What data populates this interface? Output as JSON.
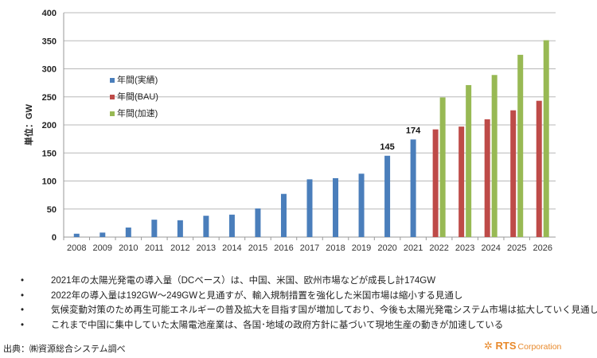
{
  "chart_data": {
    "type": "bar",
    "title": "",
    "ylabel": "単位：GW",
    "xlabel": "",
    "ylim": [
      0,
      400
    ],
    "yticks": [
      0,
      50,
      100,
      150,
      200,
      250,
      300,
      350,
      400
    ],
    "grid": true,
    "legend_position": "upper-left inside",
    "categories": [
      "2008",
      "2009",
      "2010",
      "2011",
      "2012",
      "2013",
      "2014",
      "2015",
      "2016",
      "2017",
      "2018",
      "2019",
      "2020",
      "2021",
      "2022",
      "2023",
      "2024",
      "2025",
      "2026"
    ],
    "series": [
      {
        "name": "年間(実績)",
        "color": "#4a7ebb",
        "values": [
          6,
          8,
          17,
          31,
          30,
          38,
          40,
          51,
          77,
          103,
          105,
          113,
          145,
          174,
          null,
          null,
          null,
          null,
          null
        ]
      },
      {
        "name": "年間(BAU)",
        "color": "#be4b48",
        "values": [
          null,
          null,
          null,
          null,
          null,
          null,
          null,
          null,
          null,
          null,
          null,
          null,
          null,
          null,
          192,
          197,
          210,
          226,
          243
        ]
      },
      {
        "name": "年間(加速)",
        "color": "#98b954",
        "values": [
          null,
          null,
          null,
          null,
          null,
          null,
          null,
          null,
          null,
          null,
          null,
          null,
          null,
          null,
          249,
          271,
          289,
          325,
          351
        ]
      }
    ],
    "data_labels": [
      {
        "category": "2020",
        "text": "145"
      },
      {
        "category": "2021",
        "text": "174"
      }
    ]
  },
  "notes": [
    "2021年の太陽光発電の導入量（DCベース）は、中国、米国、欧州市場などが成長し計174GW",
    "2022年の導入量は192GW～249GWと見通すが、輸入規制措置を強化した米国市場は縮小する見通し",
    "気候変動対策のため再生可能エネルギーの普及拡大を目指す国が増加しており、今後も太陽光発電システム市場は拡大していく見通し",
    "これまで中国に集中していた太陽電池産業は、各国･地域の政府方針に基づいて現地生産の動きが加速している"
  ],
  "bullet": "•",
  "source": "出典：㈱資源総合システム調べ",
  "logo": {
    "brand": "RTS",
    "suffix": "Corporation"
  }
}
